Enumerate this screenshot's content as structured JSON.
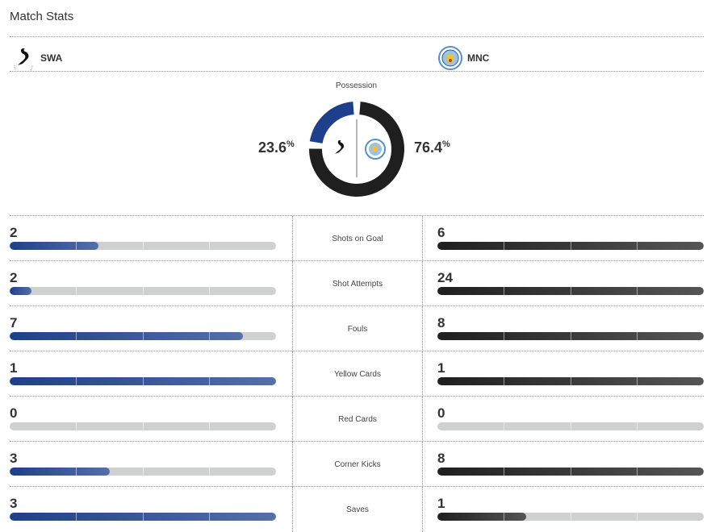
{
  "title": "Match Stats",
  "home": {
    "abbr": "SWA",
    "color": "#1e3f8a"
  },
  "away": {
    "abbr": "MNC",
    "color": "#1f1f20"
  },
  "possession": {
    "label": "Possession",
    "home": "23.6",
    "away": "76.4",
    "home_value": 23.6,
    "away_value": 76.4,
    "unit": "%"
  },
  "stats": [
    {
      "label": "Shots on Goal",
      "home": "2",
      "away": "6",
      "home_fraction": 0.333,
      "away_fraction": 1
    },
    {
      "label": "Shot Attempts",
      "home": "2",
      "away": "24",
      "home_fraction": 0.083,
      "away_fraction": 1
    },
    {
      "label": "Fouls",
      "home": "7",
      "away": "8",
      "home_fraction": 0.875,
      "away_fraction": 1
    },
    {
      "label": "Yellow Cards",
      "home": "1",
      "away": "1",
      "home_fraction": 1,
      "away_fraction": 1
    },
    {
      "label": "Red Cards",
      "home": "0",
      "away": "0",
      "home_fraction": 0,
      "away_fraction": 0
    },
    {
      "label": "Corner Kicks",
      "home": "3",
      "away": "8",
      "home_fraction": 0.375,
      "away_fraction": 1
    },
    {
      "label": "Saves",
      "home": "3",
      "away": "1",
      "home_fraction": 1,
      "away_fraction": 0.333
    }
  ]
}
